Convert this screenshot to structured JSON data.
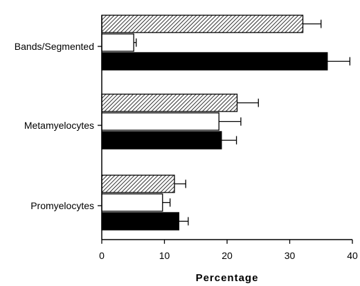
{
  "chart_data": {
    "type": "bar",
    "orientation": "horizontal",
    "categories": [
      "Bands/Segmented",
      "Metamyelocytes",
      "Promyelocytes"
    ],
    "series": [
      {
        "fill": "hatched",
        "values": [
          32.1,
          21.6,
          11.6
        ],
        "errors": [
          2.9,
          3.4,
          1.8
        ]
      },
      {
        "fill": "white",
        "values": [
          5.1,
          18.7,
          9.7
        ],
        "errors": [
          0.4,
          3.5,
          1.2
        ]
      },
      {
        "fill": "black",
        "values": [
          36.0,
          19.1,
          12.3
        ],
        "errors": [
          3.6,
          2.4,
          1.5
        ]
      }
    ],
    "xlabel": "Percentage",
    "xlim": [
      0,
      40
    ],
    "xticks": [
      "0",
      "10",
      "20",
      "30",
      "40"
    ],
    "grid": false,
    "legend": "none",
    "colors": {
      "bar_outline": "#000000",
      "solid": "#000000",
      "open": "#ffffff"
    }
  }
}
